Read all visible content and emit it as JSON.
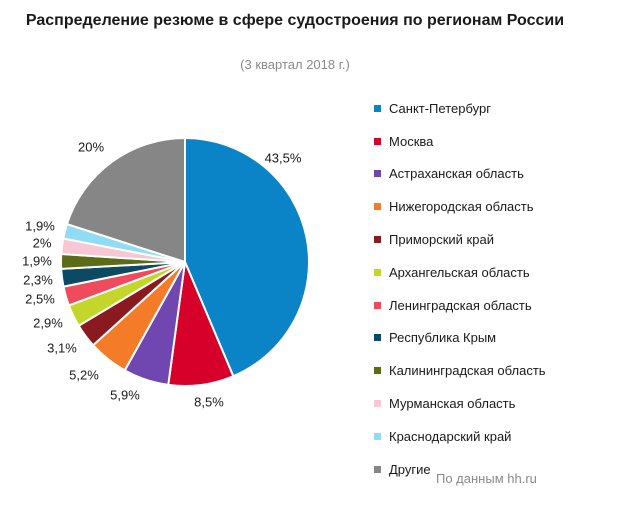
{
  "chart_data": {
    "type": "pie",
    "title": "Распределение резюме в сфере судостроения по регионам России",
    "subtitle": "(3 квартал 2018 г.)",
    "source": "По данным hh.ru",
    "legend_position": "right",
    "slices": [
      {
        "name": "Санкт-Петербург",
        "value": 43.5,
        "label": "43,5%",
        "color": "#0a84c6"
      },
      {
        "name": "Москва",
        "value": 8.5,
        "label": "8,5%",
        "color": "#d7002a"
      },
      {
        "name": "Астраханская область",
        "value": 5.9,
        "label": "5,9%",
        "color": "#7046b1"
      },
      {
        "name": "Нижегородская область",
        "value": 5.2,
        "label": "5,2%",
        "color": "#f47c28"
      },
      {
        "name": "Приморский край",
        "value": 3.1,
        "label": "3,1%",
        "color": "#8a1a1f"
      },
      {
        "name": "Архангельская область",
        "value": 2.9,
        "label": "2,9%",
        "color": "#c5d62b"
      },
      {
        "name": "Ленинградская область",
        "value": 2.5,
        "label": "2,5%",
        "color": "#f04b5d"
      },
      {
        "name": "Республика Крым",
        "value": 2.3,
        "label": "2,3%",
        "color": "#0b4a62"
      },
      {
        "name": "Калининградская область",
        "value": 1.9,
        "label": "1,9%",
        "color": "#5b6b17"
      },
      {
        "name": "Мурманская область",
        "value": 2.0,
        "label": "2%",
        "color": "#f7c8d3"
      },
      {
        "name": "Краснодарский край",
        "value": 1.9,
        "label": "1,9%",
        "color": "#8fdcf4"
      },
      {
        "name": "Другие",
        "value": 20.0,
        "label": "20%",
        "color": "#868686"
      }
    ]
  }
}
